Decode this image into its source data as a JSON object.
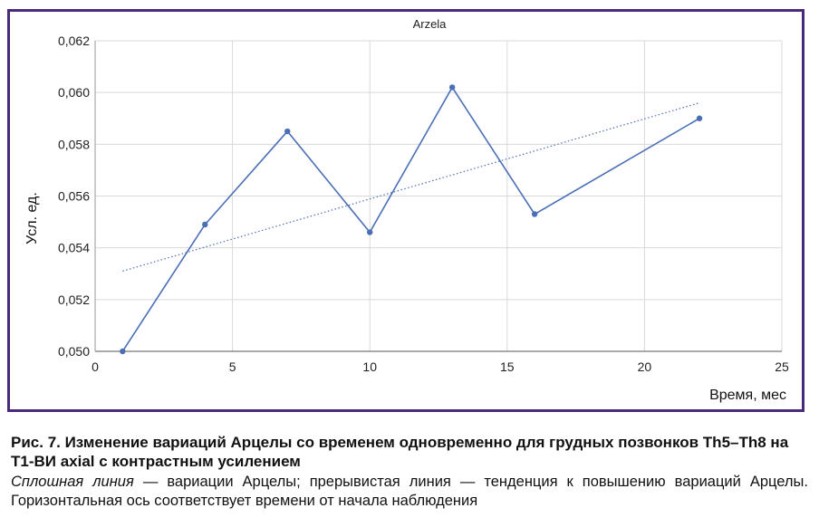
{
  "chart_data": {
    "type": "line",
    "title": "Arzela",
    "xlabel": "Время, мес",
    "ylabel": "Усл. ед.",
    "xlim": [
      0,
      25
    ],
    "ylim": [
      0.05,
      0.062
    ],
    "x_ticks": [
      "0",
      "5",
      "10",
      "15",
      "20",
      "25"
    ],
    "y_ticks": [
      "0,050",
      "0,052",
      "0,054",
      "0,056",
      "0,058",
      "0,060",
      "0,062"
    ],
    "grid": true,
    "series": [
      {
        "style": "solid",
        "color": "#4a6fb5",
        "x": [
          1,
          4,
          7,
          10,
          13,
          16,
          22
        ],
        "y": [
          0.05,
          0.0549,
          0.0585,
          0.0546,
          0.0602,
          0.0553,
          0.059
        ]
      },
      {
        "style": "dotted",
        "color": "#4a6fb5",
        "x": [
          1,
          22
        ],
        "y": [
          0.0531,
          0.0596
        ]
      }
    ]
  },
  "caption": {
    "title": "Рис. 7. Изменение вариаций Арцелы со временем одновременно для грудных позвонков Th5–Th8 на T1-ВИ axial с контрастным усилением",
    "note_italic": "Сплошная линия",
    "note_rest": " — вариации Арцелы; прерывистая линия — тенденция к повышению вариаций Арцелы. Горизонтальная ось соответствует времени от начала наблюдения"
  }
}
